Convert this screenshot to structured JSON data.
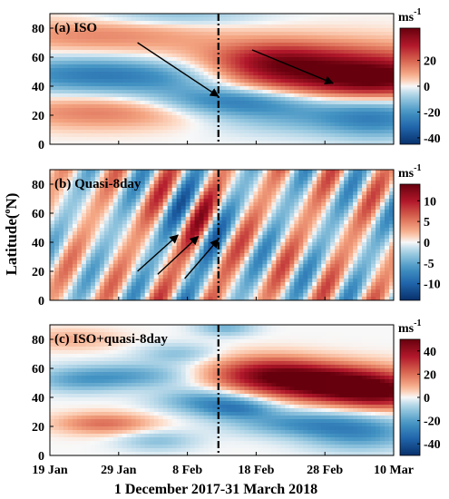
{
  "chart_data": {
    "type": "heatmap",
    "xlabel": "1 December 2017-31 March 2018",
    "ylabel": "Latitude(ºN)",
    "ylabel_base": "Latitude(",
    "ylabel_sup": "o",
    "ylabel_end": "N)",
    "x_ticks": [
      "19 Jan",
      "29 Jan",
      "8 Feb",
      "18 Feb",
      "28 Feb",
      "10 Mar"
    ],
    "x_range": [
      "2018-01-18",
      "2018-03-10"
    ],
    "event_date": "2018-02-12",
    "y_ticks": [
      0,
      20,
      40,
      60,
      80
    ],
    "ylim": [
      0,
      90
    ],
    "unit_base": "ms",
    "unit_sup": "-1",
    "panels": [
      {
        "title": "(a) ISO",
        "colorbar_ticks": [
          20,
          0,
          -20,
          -40
        ],
        "clim": [
          -45,
          45
        ],
        "arrows": [
          {
            "from": [
              "2018-01-31",
              70
            ],
            "to": [
              "2018-02-12",
              33
            ]
          },
          {
            "from": [
              "2018-02-17",
              65
            ],
            "to": [
              "2018-03-01",
              42
            ]
          }
        ],
        "blobs": [
          {
            "x": "2018-02-28",
            "y": 50,
            "sx": 14,
            "sy": 13,
            "v": 40
          },
          {
            "x": "2018-02-20",
            "y": 58,
            "sx": 6,
            "sy": 9,
            "v": 15
          },
          {
            "x": "2018-03-08",
            "y": 44,
            "sx": 6,
            "sy": 8,
            "v": 20
          },
          {
            "x": "2018-01-25",
            "y": 75,
            "sx": 12,
            "sy": 9,
            "v": 14
          },
          {
            "x": "2018-01-24",
            "y": 48,
            "sx": 11,
            "sy": 9,
            "v": -25
          },
          {
            "x": "2018-02-07",
            "y": 45,
            "sx": 8,
            "sy": 9,
            "v": -14
          },
          {
            "x": "2018-02-14",
            "y": 30,
            "sx": 8,
            "sy": 7,
            "v": -26
          },
          {
            "x": "2018-02-24",
            "y": 20,
            "sx": 10,
            "sy": 9,
            "v": -14
          },
          {
            "x": "2018-03-08",
            "y": 18,
            "sx": 6,
            "sy": 10,
            "v": -20
          },
          {
            "x": "2018-01-26",
            "y": 22,
            "sx": 11,
            "sy": 8,
            "v": 16
          },
          {
            "x": "2018-02-05",
            "y": 88,
            "sx": 9,
            "sy": 5,
            "v": -12
          }
        ]
      },
      {
        "title": "(b) Quasi-8day",
        "colorbar_ticks": [
          10,
          5,
          0,
          -5,
          -10
        ],
        "clim": [
          -14,
          14
        ],
        "arrows": [
          {
            "from": [
              "2018-01-31",
              20
            ],
            "to": [
              "2018-02-06",
              45
            ]
          },
          {
            "from": [
              "2018-02-03",
              18
            ],
            "to": [
              "2018-02-09",
              44
            ]
          },
          {
            "from": [
              "2018-02-07",
              15
            ],
            "to": [
              "2018-02-12",
              42
            ]
          }
        ],
        "wave": {
          "period_days": 8,
          "phase_tilt": 9,
          "amp_early": 6,
          "amp_mid": 13,
          "amp_late": 8,
          "event_peak": "2018-02-10"
        }
      },
      {
        "title": "(c) ISO+quasi-8day",
        "colorbar_ticks": [
          40,
          20,
          0,
          -20,
          -40
        ],
        "clim": [
          -50,
          50
        ],
        "arrows": [],
        "blobs": [
          {
            "x": "2018-02-27",
            "y": 52,
            "sx": 9,
            "sy": 8,
            "v": 42
          },
          {
            "x": "2018-03-04",
            "y": 45,
            "sx": 7,
            "sy": 7,
            "v": 30
          },
          {
            "x": "2018-02-19",
            "y": 58,
            "sx": 6,
            "sy": 8,
            "v": 24
          },
          {
            "x": "2018-03-09",
            "y": 40,
            "sx": 5,
            "sy": 7,
            "v": 22
          },
          {
            "x": "2018-01-22",
            "y": 52,
            "sx": 5,
            "sy": 6,
            "v": -16
          },
          {
            "x": "2018-01-31",
            "y": 55,
            "sx": 6,
            "sy": 6,
            "v": -17
          },
          {
            "x": "2018-02-06",
            "y": 70,
            "sx": 4,
            "sy": 5,
            "v": -12
          },
          {
            "x": "2018-02-10",
            "y": 38,
            "sx": 5,
            "sy": 6,
            "v": -20
          },
          {
            "x": "2018-02-15",
            "y": 32,
            "sx": 4,
            "sy": 5,
            "v": -22
          },
          {
            "x": "2018-02-24",
            "y": 22,
            "sx": 7,
            "sy": 6,
            "v": -20
          },
          {
            "x": "2018-03-05",
            "y": 15,
            "sx": 6,
            "sy": 8,
            "v": -22
          },
          {
            "x": "2018-01-26",
            "y": 22,
            "sx": 5,
            "sy": 5,
            "v": 20
          },
          {
            "x": "2018-01-21",
            "y": 80,
            "sx": 5,
            "sy": 5,
            "v": 10
          },
          {
            "x": "2018-02-03",
            "y": 10,
            "sx": 4,
            "sy": 5,
            "v": -12
          },
          {
            "x": "2018-02-13",
            "y": 88,
            "sx": 3,
            "sy": 4,
            "v": -15
          }
        ]
      }
    ]
  }
}
